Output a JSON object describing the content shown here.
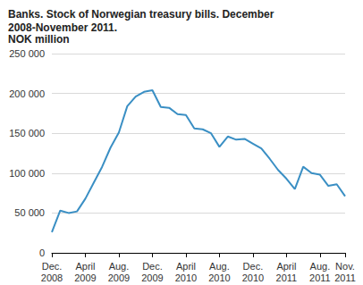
{
  "chart_data": {
    "type": "line",
    "title": "Banks. Stock of Norwegian treasury bills. December 2008-November 2011.",
    "subtitle": "NOK million",
    "categories": [
      "Dec.\n2008",
      null,
      null,
      null,
      "April\n2009",
      null,
      null,
      null,
      "Aug.\n2009",
      null,
      null,
      null,
      "Dec.\n2009",
      null,
      null,
      null,
      "April\n2010",
      null,
      null,
      null,
      "Aug.\n2010",
      null,
      null,
      null,
      "Dec.\n2010",
      null,
      null,
      null,
      "April\n2011",
      null,
      null,
      null,
      "Aug.\n2011",
      null,
      null,
      "Nov.\n2011"
    ],
    "values": [
      26000,
      53000,
      50000,
      52000,
      68000,
      88000,
      108000,
      132000,
      151000,
      184000,
      196000,
      202000,
      204000,
      183000,
      182000,
      174000,
      173000,
      156000,
      155000,
      150000,
      133000,
      146000,
      142000,
      143000,
      137000,
      131000,
      118000,
      104000,
      93000,
      80000,
      108000,
      100000,
      98000,
      84000,
      86000,
      71000
    ],
    "color": "#3a8fc4",
    "ylim": [
      0,
      250000
    ],
    "yticks": [
      0,
      {
        "value": 50000,
        "label": "50 000"
      },
      {
        "value": 100000,
        "label": "100 000"
      },
      {
        "value": 150000,
        "label": "150 000"
      },
      {
        "value": 200000,
        "label": "200 000"
      },
      {
        "value": 250000,
        "label": "250 000"
      }
    ],
    "grid": true
  }
}
